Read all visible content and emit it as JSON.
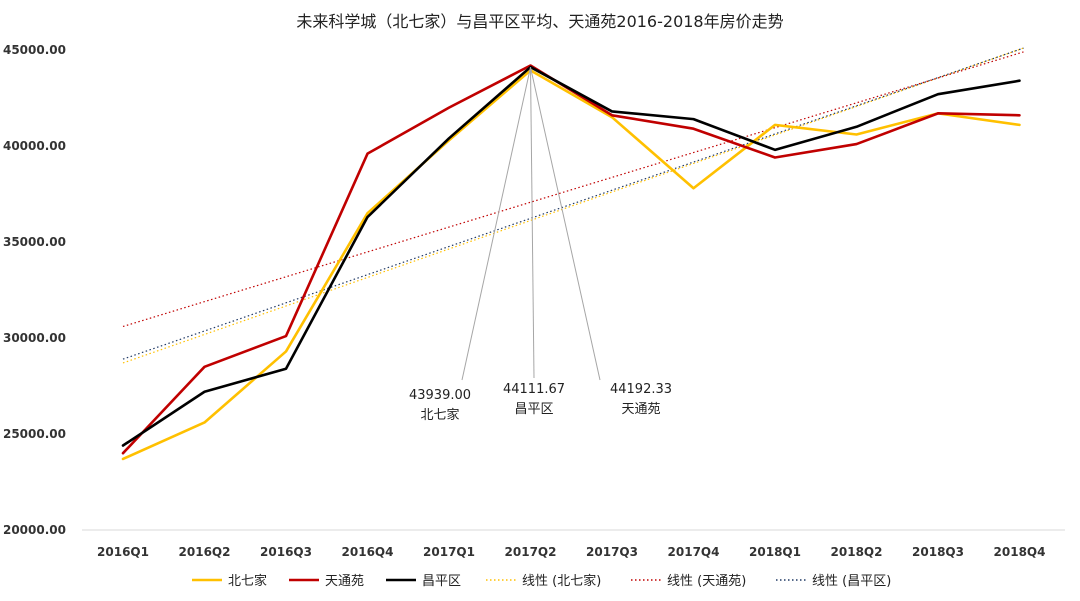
{
  "chart_data": {
    "type": "line",
    "title": "未来科学城（北七家）与昌平区平均、天通苑2016-2018年房价走势",
    "xlabel": "",
    "ylabel": "",
    "categories": [
      "2016Q1",
      "2016Q2",
      "2016Q3",
      "2016Q4",
      "2017Q1",
      "2017Q2",
      "2017Q3",
      "2017Q4",
      "2018Q1",
      "2018Q2",
      "2018Q3",
      "2018Q4"
    ],
    "y_tick_labels": [
      "20000.00",
      "25000.00",
      "30000.00",
      "35000.00",
      "40000.00",
      "45000.00"
    ],
    "ylim": [
      20000,
      45000
    ],
    "grid": false,
    "legend_position": "bottom",
    "series": [
      {
        "name": "北七家",
        "color": "#FFC000",
        "values": [
          23700,
          25600,
          29300,
          36500,
          40300,
          43939.0,
          41500,
          37800,
          41100,
          40600,
          41700,
          41100
        ]
      },
      {
        "name": "天通苑",
        "color": "#C00000",
        "values": [
          24000,
          28500,
          30100,
          39600,
          42000,
          44192.33,
          41600,
          40900,
          39400,
          40100,
          41700,
          41600
        ]
      },
      {
        "name": "昌平区",
        "color": "#000000",
        "values": [
          24400,
          27200,
          28400,
          36300,
          40400,
          44111.67,
          41800,
          41400,
          39800,
          41000,
          42700,
          43400
        ]
      }
    ],
    "trendlines": [
      {
        "name": "线性 (北七家)",
        "color": "#FFC000",
        "start": 28700,
        "end": 45100
      },
      {
        "name": "线性 (天通苑)",
        "color": "#C00000",
        "start": 30600,
        "end": 44900
      },
      {
        "name": "线性 (昌平区)",
        "color": "#1F3864",
        "start": 28900,
        "end": 45100
      }
    ],
    "annotations": [
      {
        "value": "43939.00",
        "label": "北七家"
      },
      {
        "value": "44111.67",
        "label": "昌平区"
      },
      {
        "value": "44192.33",
        "label": "天通苑"
      }
    ]
  }
}
